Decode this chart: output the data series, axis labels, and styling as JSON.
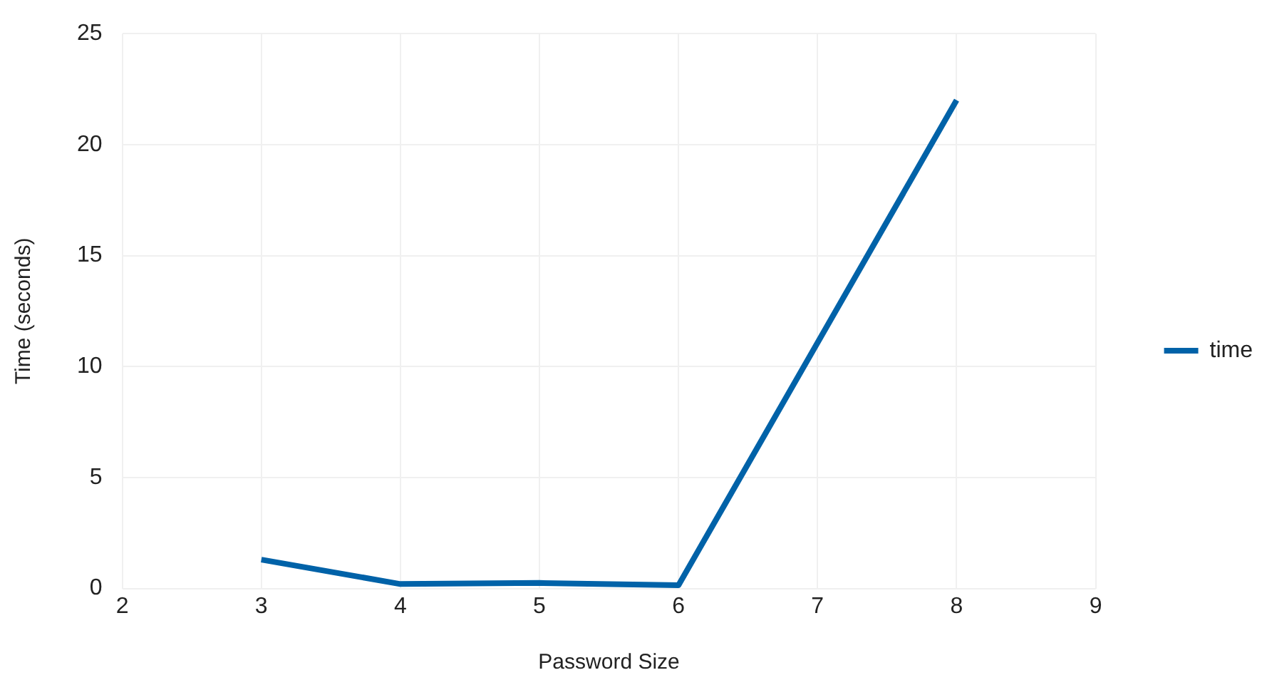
{
  "chart_data": {
    "type": "line",
    "xlabel": "Password Size",
    "ylabel": "Time (seconds)",
    "x": [
      3,
      4,
      5,
      6,
      8
    ],
    "series": [
      {
        "name": "time",
        "color": "#0062a8",
        "values": [
          1.3,
          0.2,
          0.25,
          0.15,
          22
        ]
      }
    ],
    "xlim": [
      2,
      9
    ],
    "xticks": [
      2,
      3,
      4,
      5,
      6,
      7,
      8,
      9
    ],
    "ylim": [
      0,
      25
    ],
    "yticks": [
      0,
      5,
      10,
      15,
      20,
      25
    ],
    "grid": true,
    "legend": "right",
    "marker": "none",
    "line_style": "solid"
  }
}
